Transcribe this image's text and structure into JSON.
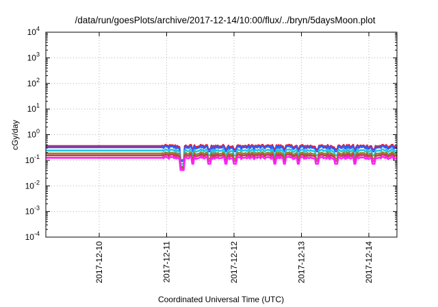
{
  "chart_data": {
    "type": "line",
    "title": "/data/run/goesPlots/archive/2017-12-14/10:00/flux/../bryn/5daysMoon.plot",
    "xlabel": "Coordinated Universal Time (UTC)",
    "ylabel": "cGy/day",
    "y_scale": "log",
    "ylim": [
      0.0001,
      10000
    ],
    "y_ticks": [
      {
        "base": "10",
        "exp": "-4",
        "value": 0.0001
      },
      {
        "base": "10",
        "exp": "-3",
        "value": 0.001
      },
      {
        "base": "10",
        "exp": "-2",
        "value": 0.01
      },
      {
        "base": "10",
        "exp": "-1",
        "value": 0.1
      },
      {
        "base": "10",
        "exp": "0",
        "value": 1
      },
      {
        "base": "10",
        "exp": "1",
        "value": 10
      },
      {
        "base": "10",
        "exp": "2",
        "value": 100
      },
      {
        "base": "10",
        "exp": "3",
        "value": 1000
      },
      {
        "base": "10",
        "exp": "4",
        "value": 10000
      }
    ],
    "xlim": [
      "2017-12-09 05:00",
      "2017-12-14 10:00"
    ],
    "x_ticks": [
      "2017-12-10",
      "2017-12-11",
      "2017-12-12",
      "2017-12-13",
      "2017-12-14"
    ],
    "grid": true,
    "series": [
      {
        "color": "#e0203a",
        "baseline": 0.36,
        "noise": 0.13,
        "dips": 0.25
      },
      {
        "color": "#2a5cff",
        "baseline": 0.32,
        "noise": 0.15,
        "dips": 0.3
      },
      {
        "color": "#22c6e6",
        "baseline": 0.24,
        "noise": 0.13,
        "dips": 0.35
      },
      {
        "color": "#8a8a2a",
        "baseline": 0.185,
        "noise": 0.12,
        "dips": 0.38
      },
      {
        "color": "#c83c50",
        "baseline": 0.155,
        "noise": 0.12,
        "dips": 0.4
      },
      {
        "color": "#ff20ff",
        "baseline": 0.125,
        "noise": 0.12,
        "dips": 0.42
      }
    ],
    "gap_until": "2017-12-10 22:30"
  }
}
